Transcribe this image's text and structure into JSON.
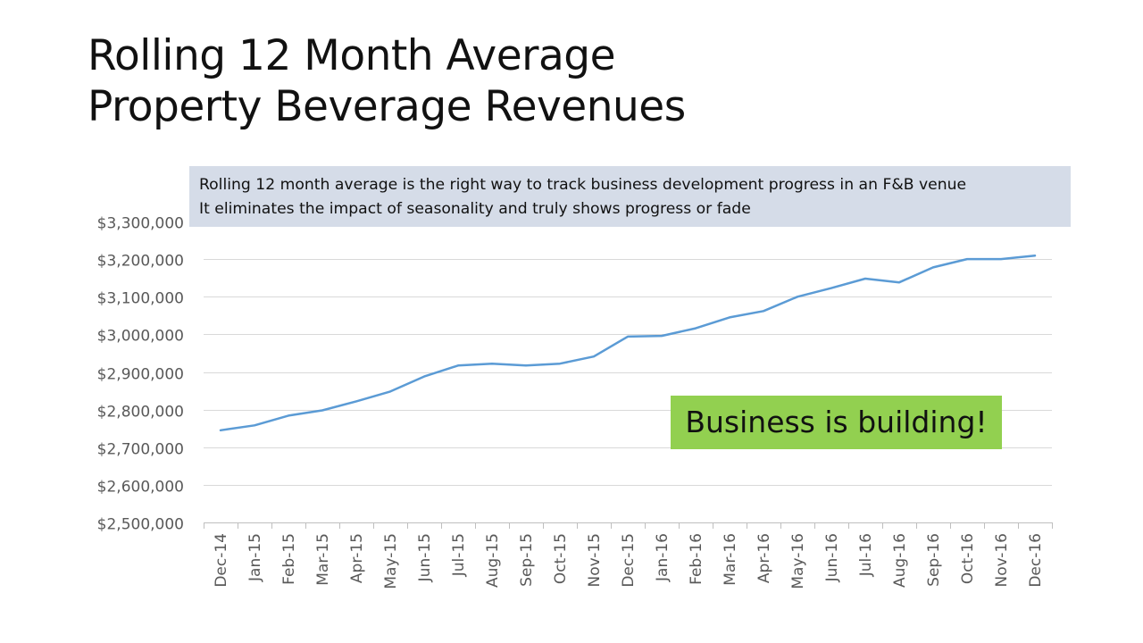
{
  "slide": {
    "title_line1": "Rolling 12 Month Average",
    "title_line2": "Property Beverage Revenues",
    "note_line1": "Rolling 12 month average is the right way to track business development progress in an F&B venue",
    "note_line2": "It eliminates the impact of seasonality and truly shows progress or fade",
    "callout": "Business is building!"
  },
  "colors": {
    "line": "#5b9bd5",
    "grid": "#d9d9d9",
    "axis": "#bfbfbf",
    "tick_text": "#595959",
    "note_bg": "#d5dce8",
    "callout_bg": "#92d050"
  },
  "chart_data": {
    "type": "line",
    "categories": [
      "Dec-14",
      "Jan-15",
      "Feb-15",
      "Mar-15",
      "Apr-15",
      "May-15",
      "Jun-15",
      "Jul-15",
      "Aug-15",
      "Sep-15",
      "Oct-15",
      "Nov-15",
      "Dec-15",
      "Jan-16",
      "Feb-16",
      "Mar-16",
      "Apr-16",
      "May-16",
      "Jun-16",
      "Jul-16",
      "Aug-16",
      "Sep-16",
      "Oct-16",
      "Nov-16",
      "Dec-16"
    ],
    "series": [
      {
        "values": [
          2745000,
          2758000,
          2784000,
          2798000,
          2822000,
          2848000,
          2888000,
          2917000,
          2922000,
          2917000,
          2922000,
          2941000,
          2994000,
          2996000,
          3016000,
          3045000,
          3062000,
          3100000,
          3123000,
          3148000,
          3138000,
          3178000,
          3200000,
          3200000,
          3209000
        ]
      }
    ],
    "ylim": [
      2500000,
      3300000
    ],
    "y_ticks": [
      2500000,
      2600000,
      2700000,
      2800000,
      2900000,
      3000000,
      3100000,
      3200000,
      3300000
    ],
    "y_tick_labels": [
      "$2,500,000",
      "$2,600,000",
      "$2,700,000",
      "$2,800,000",
      "$2,900,000",
      "$3,000,000",
      "$3,100,000",
      "$3,200,000",
      "$3,300,000"
    ],
    "xlabel": "",
    "ylabel": "",
    "grid": "horizontal",
    "legend": "none"
  }
}
